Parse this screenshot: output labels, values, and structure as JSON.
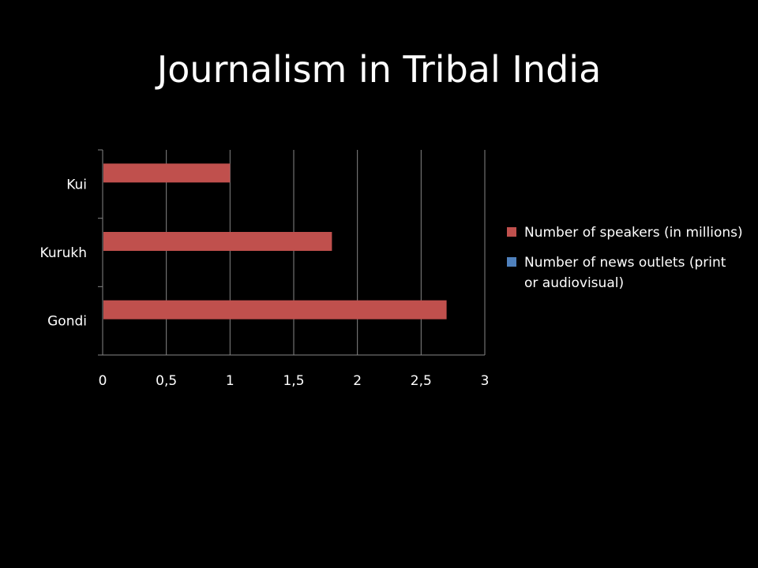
{
  "slide": {
    "title": "Journalism in Tribal India"
  },
  "chart_data": {
    "type": "bar",
    "orientation": "horizontal",
    "categories": [
      "Gondi",
      "Kurukh",
      "Kui"
    ],
    "series": [
      {
        "name": "Number of speakers (in millions)",
        "values": [
          2.7,
          1.8,
          1.0
        ],
        "color": "#c0504d"
      },
      {
        "name": "Number of news outlets (print or audiovisual)",
        "values": [
          0,
          0,
          0
        ],
        "color": "#4f81bd"
      }
    ],
    "xlim": [
      0,
      3
    ],
    "xticks": [
      0,
      0.5,
      1,
      1.5,
      2,
      2.5,
      3
    ],
    "xtick_labels": [
      "0",
      "0,5",
      "1",
      "1,5",
      "2",
      "2,5",
      "3"
    ],
    "grid": "vertical",
    "legend_position": "right"
  }
}
